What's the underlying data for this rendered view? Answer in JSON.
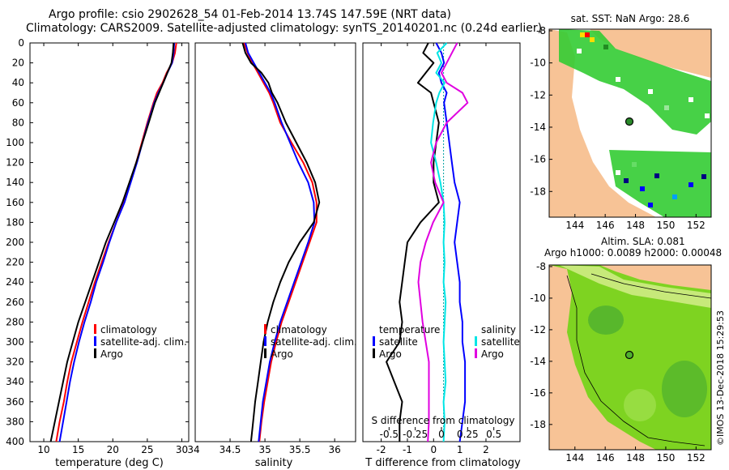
{
  "header": {
    "line1": "Argo profile: csio 2902628_54 01-Feb-2014 13.74S 147.59E (NRT data)",
    "line2": "Climatology: CARS2009. Satellite-adjusted climatology: synTS_20140201.nc (0.24d earlier)"
  },
  "colors": {
    "clim": "#ff0000",
    "sat": "#0000ff",
    "argo": "#000000",
    "sat_s": "#00e5e5",
    "argo_s": "#e000e0",
    "land": "#f7c396",
    "sst_green": "#33cc33",
    "sla_green": "#7ed321"
  },
  "chart_data": [
    {
      "type": "line",
      "title": "temperature",
      "xlabel": "temperature (deg C)",
      "ylabel": "depth",
      "xlim": [
        8,
        31
      ],
      "ylim": [
        400,
        0
      ],
      "xticks": [
        "10",
        "15",
        "20",
        "25",
        "30"
      ],
      "yticks": [
        "0",
        "20",
        "40",
        "60",
        "80",
        "100",
        "120",
        "140",
        "160",
        "180",
        "200",
        "220",
        "240",
        "260",
        "280",
        "300",
        "320",
        "340",
        "360",
        "380",
        "400"
      ],
      "depth": [
        0,
        10,
        20,
        30,
        40,
        50,
        60,
        80,
        100,
        120,
        140,
        160,
        180,
        200,
        220,
        240,
        260,
        280,
        300,
        320,
        340,
        360,
        380,
        400
      ],
      "series": [
        {
          "name": "climatology",
          "values": [
            29.2,
            29.0,
            28.6,
            27.8,
            27.2,
            26.4,
            25.9,
            25.0,
            24.2,
            23.4,
            22.5,
            21.6,
            20.5,
            19.4,
            18.4,
            17.4,
            16.5,
            15.6,
            14.8,
            14.0,
            13.4,
            12.9,
            12.3,
            11.8
          ]
        },
        {
          "name": "satellite-adj. clim.",
          "values": [
            28.9,
            28.8,
            28.6,
            27.9,
            27.3,
            26.6,
            26.0,
            25.1,
            24.3,
            23.5,
            22.6,
            21.7,
            20.5,
            19.5,
            18.6,
            17.6,
            16.8,
            15.9,
            15.1,
            14.4,
            13.8,
            13.3,
            12.8,
            12.3
          ]
        },
        {
          "name": "Argo",
          "values": [
            28.8,
            28.7,
            28.5,
            27.9,
            27.3,
            26.7,
            26.1,
            25.2,
            24.3,
            23.4,
            22.4,
            21.4,
            20.2,
            19.0,
            18.0,
            17.0,
            16.0,
            15.0,
            14.2,
            13.4,
            12.8,
            12.2,
            11.6,
            11.0
          ]
        }
      ],
      "legend": [
        "climatology",
        "satellite-adj. clim.",
        "Argo"
      ]
    },
    {
      "type": "line",
      "title": "salinity",
      "xlabel": "salinity",
      "xlim": [
        34.0,
        36.3
      ],
      "ylim": [
        400,
        0
      ],
      "xticks": [
        "34",
        "34.5",
        "35",
        "35.5",
        "36"
      ],
      "depth": [
        0,
        10,
        20,
        30,
        40,
        50,
        60,
        80,
        100,
        120,
        140,
        160,
        180,
        200,
        220,
        240,
        260,
        280,
        300,
        320,
        340,
        360,
        380,
        400
      ],
      "series": [
        {
          "name": "climatology",
          "values": [
            34.7,
            34.75,
            34.82,
            34.9,
            34.98,
            35.06,
            35.12,
            35.22,
            35.38,
            35.55,
            35.68,
            35.74,
            35.74,
            35.64,
            35.54,
            35.44,
            35.34,
            35.24,
            35.16,
            35.09,
            35.04,
            34.99,
            34.95,
            34.92
          ]
        },
        {
          "name": "satellite-adj. clim.",
          "values": [
            34.72,
            34.76,
            34.84,
            34.92,
            35.0,
            35.08,
            35.14,
            35.24,
            35.36,
            35.48,
            35.62,
            35.7,
            35.71,
            35.62,
            35.52,
            35.42,
            35.32,
            35.22,
            35.14,
            35.07,
            35.02,
            34.97,
            34.94,
            34.91
          ]
        },
        {
          "name": "Argo",
          "values": [
            34.68,
            34.72,
            34.8,
            34.95,
            35.05,
            35.1,
            35.18,
            35.3,
            35.45,
            35.6,
            35.72,
            35.78,
            35.7,
            35.5,
            35.34,
            35.22,
            35.12,
            35.04,
            34.98,
            34.94,
            34.9,
            34.86,
            34.83,
            34.8
          ]
        }
      ],
      "legend": [
        "climatology",
        "satellite-adj. clim.",
        "Argo"
      ]
    },
    {
      "type": "line",
      "title": "difference from climatology",
      "xlabel": "T difference from climatology",
      "xlabel_top": "S difference from climatology",
      "xlim": [
        -2.7,
        3.3
      ],
      "ylim": [
        400,
        0
      ],
      "xticks": [
        "-2",
        "-1",
        "0",
        "1",
        "2"
      ],
      "xticks_s": [
        "-0.5",
        "-0.25",
        "0",
        "0.25",
        "0.5"
      ],
      "depth": [
        0,
        10,
        20,
        30,
        40,
        50,
        60,
        80,
        100,
        120,
        140,
        160,
        180,
        200,
        220,
        240,
        260,
        280,
        300,
        320,
        340,
        360,
        380,
        400
      ],
      "series": [
        {
          "name": "temperature satellite",
          "values": [
            0.1,
            0.3,
            0.4,
            0.2,
            0.3,
            0.5,
            0.4,
            0.5,
            0.6,
            0.7,
            0.8,
            1.0,
            0.9,
            0.8,
            0.9,
            1.0,
            1.0,
            1.1,
            1.1,
            1.2,
            1.2,
            1.2,
            1.1,
            1.0
          ]
        },
        {
          "name": "temperature Argo",
          "values": [
            -0.2,
            -0.4,
            0.0,
            -0.3,
            -0.6,
            -0.1,
            0.0,
            0.2,
            0.1,
            0.0,
            0.0,
            0.2,
            -0.5,
            -1.0,
            -1.1,
            -1.2,
            -1.3,
            -1.2,
            -1.3,
            -1.8,
            -1.5,
            -1.2,
            -1.3,
            -1.3
          ]
        },
        {
          "name": "salinity satellite",
          "values": [
            0.05,
            -0.04,
            0.0,
            -0.05,
            0.03,
            -0.02,
            -0.05,
            -0.08,
            -0.1,
            -0.05,
            -0.01,
            0.02,
            0.03,
            0.02,
            0.03,
            0.02,
            0.04,
            0.03,
            0.02,
            0.03,
            0.04,
            0.02,
            0.03,
            0.02
          ]
        },
        {
          "name": "salinity Argo",
          "values": [
            0.15,
            0.1,
            0.05,
            0.0,
            0.05,
            0.2,
            0.25,
            0.05,
            -0.05,
            -0.1,
            -0.06,
            0.02,
            -0.08,
            -0.15,
            -0.2,
            -0.22,
            -0.2,
            -0.18,
            -0.15,
            -0.12,
            -0.12,
            -0.12,
            -0.12,
            -0.13
          ]
        }
      ],
      "legend_left_title": "temperature",
      "legend_right_title": "salinity",
      "legend_left": [
        "satellite",
        "Argo"
      ],
      "legend_right": [
        "satellite",
        "Argo"
      ]
    },
    {
      "type": "heatmap",
      "title": "sat. SST: NaN Argo: 28.6",
      "xticks": [
        "144",
        "146",
        "148",
        "150",
        "152"
      ],
      "yticks": [
        "-8",
        "-10",
        "-12",
        "-14",
        "-16",
        "-18"
      ],
      "xlim": [
        142.3,
        153.0
      ],
      "ylim": [
        -19.6,
        -7.9
      ],
      "marker": {
        "lon": 147.59,
        "lat": -13.74
      }
    },
    {
      "type": "heatmap",
      "title_line1": "Altim. SLA: 0.081",
      "title_line2": "Argo h1000: 0.0089 h2000: 0.00048",
      "xticks": [
        "144",
        "146",
        "148",
        "150",
        "152"
      ],
      "yticks": [
        "-8",
        "-10",
        "-12",
        "-14",
        "-16",
        "-18"
      ],
      "xlim": [
        142.3,
        153.0
      ],
      "ylim": [
        -19.6,
        -7.9
      ],
      "marker": {
        "lon": 147.59,
        "lat": -13.74
      },
      "credit": "©IMOS 13-Dec-2018 15:29:53"
    }
  ]
}
